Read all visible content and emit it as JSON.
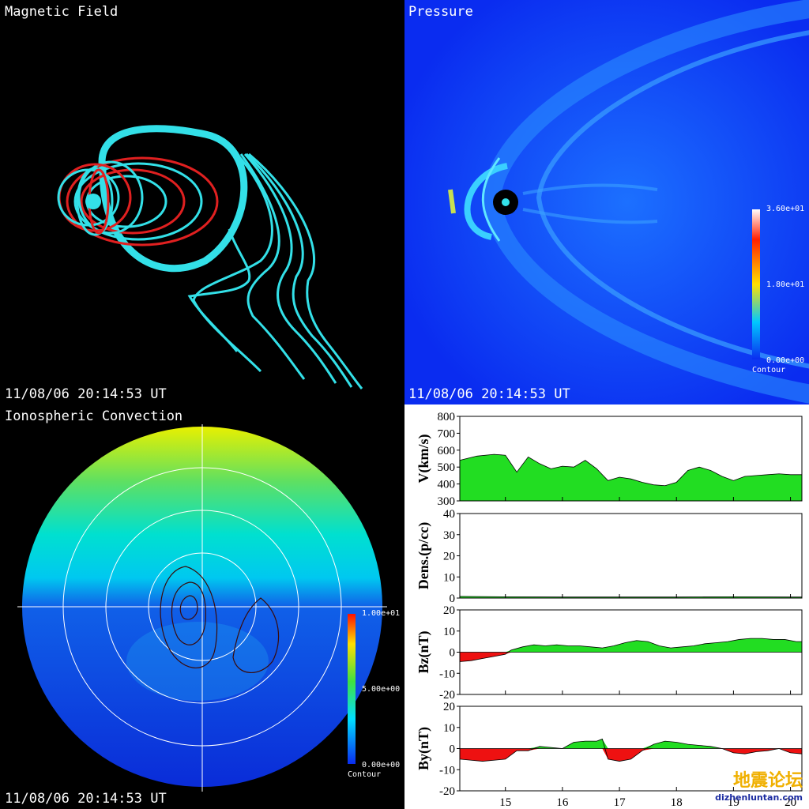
{
  "panels": {
    "magnetic": {
      "title": "Magnetic Field",
      "timestamp": "11/08/06 20:14:53 UT"
    },
    "pressure": {
      "title": "Pressure",
      "timestamp": "11/08/06 20:14:53 UT",
      "colorbar": {
        "max": "3.60e+01",
        "mid": "1.80e+01",
        "min": "0.00e+00",
        "label": "Contour"
      }
    },
    "ionospheric": {
      "title": "Ionospheric Convection",
      "timestamp": "11/08/06 20:14:53 UT",
      "colorbar": {
        "max": "1.00e+01",
        "mid": "5.00e+00",
        "min": "0.00e+00",
        "label": "Contour"
      }
    }
  },
  "watermark": {
    "text": "地震论坛",
    "url": "dizhenluntan.com"
  },
  "chart_data": [
    {
      "type": "area",
      "ylabel": "V(km/s)",
      "ylim": [
        300,
        800
      ],
      "yticks": [
        300,
        400,
        500,
        600,
        700,
        800
      ],
      "x": [
        14.2,
        14.5,
        14.8,
        15.0,
        15.2,
        15.4,
        15.6,
        15.8,
        16.0,
        16.2,
        16.4,
        16.6,
        16.8,
        17.0,
        17.2,
        17.4,
        17.6,
        17.8,
        18.0,
        18.2,
        18.4,
        18.6,
        18.8,
        19.0,
        19.2,
        19.4,
        19.6,
        19.8,
        20.0,
        20.2
      ],
      "values": [
        540,
        565,
        575,
        570,
        470,
        560,
        520,
        490,
        505,
        500,
        540,
        490,
        420,
        440,
        430,
        410,
        395,
        390,
        410,
        480,
        500,
        480,
        445,
        420,
        445,
        450,
        455,
        460,
        455,
        455
      ],
      "baseline": 300,
      "color": "#22dd22"
    },
    {
      "type": "area",
      "ylabel": "Dens.(p/cc)",
      "ylim": [
        0,
        40
      ],
      "yticks": [
        0,
        10,
        20,
        30,
        40
      ],
      "x": [
        14.2,
        15.0,
        16.0,
        17.0,
        18.0,
        19.0,
        20.0,
        20.2
      ],
      "values": [
        0.8,
        0.6,
        0.5,
        0.5,
        0.5,
        0.6,
        0.5,
        0.5
      ],
      "baseline": 0,
      "color": "#22dd22"
    },
    {
      "type": "area",
      "ylabel": "Bz(nT)",
      "ylim": [
        -20,
        20
      ],
      "yticks": [
        -20,
        -10,
        0,
        10,
        20
      ],
      "x": [
        14.2,
        14.4,
        14.6,
        14.8,
        15.0,
        15.1,
        15.3,
        15.5,
        15.7,
        15.9,
        16.1,
        16.3,
        16.5,
        16.7,
        16.9,
        17.1,
        17.3,
        17.5,
        17.7,
        17.9,
        18.1,
        18.3,
        18.5,
        18.7,
        18.9,
        19.1,
        19.3,
        19.5,
        19.7,
        19.9,
        20.1,
        20.2
      ],
      "values": [
        -4.5,
        -4,
        -3,
        -2,
        -1,
        1,
        2.5,
        3.5,
        3,
        3.5,
        3,
        3,
        2.5,
        2,
        3,
        4.5,
        5.5,
        5,
        3,
        2,
        2.5,
        3,
        4,
        4.5,
        5,
        6,
        6.5,
        6.5,
        6,
        6,
        5,
        5
      ],
      "baseline": 0,
      "pos_color": "#22dd22",
      "neg_color": "#ee1111"
    },
    {
      "type": "area",
      "ylabel": "By(nT)",
      "ylim": [
        -20,
        20
      ],
      "yticks": [
        -20,
        -10,
        0,
        10,
        20
      ],
      "x": [
        14.2,
        14.4,
        14.6,
        14.8,
        15.0,
        15.2,
        15.4,
        15.6,
        15.8,
        16.0,
        16.2,
        16.4,
        16.6,
        16.7,
        16.8,
        17.0,
        17.2,
        17.4,
        17.6,
        17.8,
        18.0,
        18.2,
        18.4,
        18.6,
        18.8,
        19.0,
        19.2,
        19.4,
        19.6,
        19.8,
        20.0,
        20.2
      ],
      "values": [
        -5,
        -5.5,
        -6,
        -5.5,
        -5,
        -1,
        -1,
        1,
        0.5,
        0,
        3,
        3.5,
        3.5,
        4.5,
        -5,
        -6,
        -5,
        -1,
        2,
        3.5,
        3,
        2,
        1.5,
        1,
        0,
        -2,
        -2.5,
        -1.5,
        -1,
        0,
        -2,
        -2.5
      ],
      "baseline": 0,
      "pos_color": "#22dd22",
      "neg_color": "#ee1111"
    }
  ],
  "xaxis": {
    "ticks": [
      15,
      16,
      17,
      18,
      19,
      20
    ],
    "xlim": [
      14.2,
      20.2
    ]
  }
}
